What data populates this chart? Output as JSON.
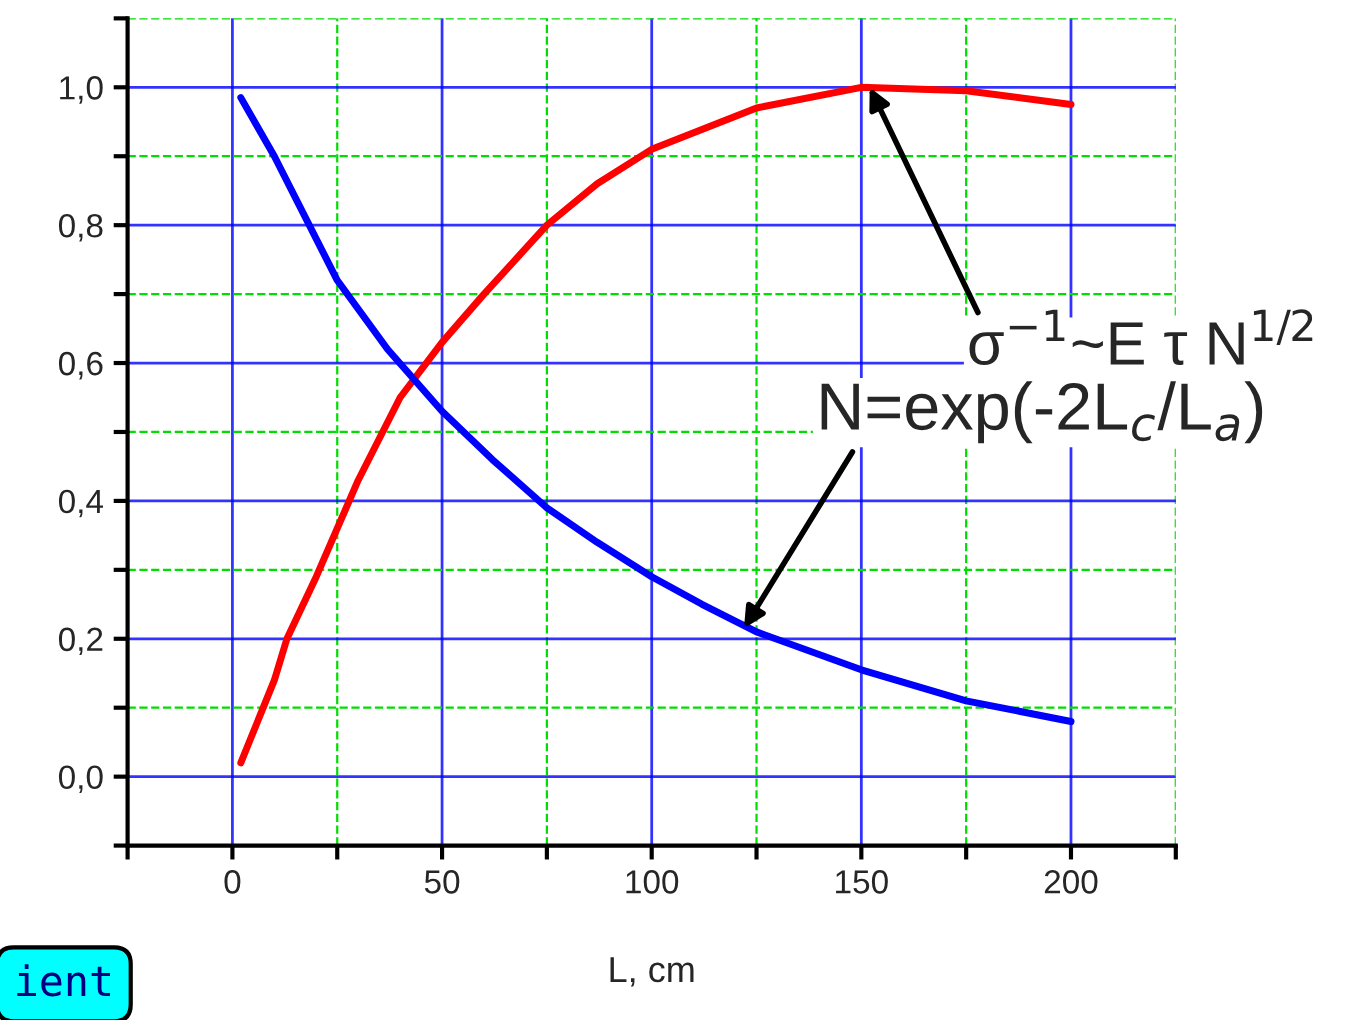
{
  "chart_data": {
    "type": "line",
    "xlabel": "L, cm",
    "series": [
      {
        "color": "#ff0000",
        "x": [
          2,
          10,
          13,
          20,
          25,
          30,
          40,
          50,
          60,
          75,
          87,
          100,
          125,
          150,
          175,
          200
        ],
        "values": [
          0.02,
          0.14,
          0.2,
          0.29,
          0.36,
          0.43,
          0.55,
          0.63,
          0.7,
          0.8,
          0.86,
          0.91,
          0.97,
          1.0,
          0.995,
          0.975
        ]
      },
      {
        "color": "#0000ff",
        "x": [
          2,
          10,
          25,
          37,
          50,
          62,
          75,
          87,
          100,
          112,
          125,
          150,
          175,
          200
        ],
        "values": [
          0.985,
          0.9,
          0.72,
          0.62,
          0.53,
          0.46,
          0.39,
          0.34,
          0.29,
          0.25,
          0.21,
          0.155,
          0.11,
          0.08
        ]
      }
    ],
    "xlim": [
      -25,
      225
    ],
    "xticks": [
      {
        "value": -25,
        "label": null
      },
      0,
      {
        "value": 25,
        "label": null
      },
      50,
      {
        "value": 75,
        "label": null
      },
      100,
      {
        "value": 125,
        "label": null
      },
      150,
      {
        "value": 175,
        "label": null
      },
      200,
      {
        "value": 225,
        "label": null
      }
    ],
    "ylim": [
      -0.1,
      1.1
    ],
    "yticks": [
      {
        "value": -0.1,
        "label": null
      },
      {
        "value": 0.0,
        "label": "0,0"
      },
      {
        "value": 0.1,
        "label": null
      },
      {
        "value": 0.3,
        "label": null
      },
      {
        "value": 0.5,
        "label": null
      },
      {
        "value": 0.7,
        "label": null
      },
      {
        "value": 0.9,
        "label": null
      },
      {
        "value": 1.1,
        "label": null
      },
      {
        "value": 0.2,
        "label": "0,2"
      },
      {
        "value": 0.4,
        "label": "0,4"
      },
      {
        "value": 0.6,
        "label": "0,6"
      },
      {
        "value": 0.8,
        "label": "0,8"
      },
      {
        "value": 1.0,
        "label": "1,0"
      }
    ],
    "grid": true,
    "marker": "none",
    "line_style": "solid",
    "annotations": [
      {
        "text": "σ$^{−1}$~E τ N$^{1/2}$",
        "x": 152,
        "y": 1.0
      },
      {
        "text": "N=exp(-2L$_{c}$/L$_{a}$)",
        "x": 122,
        "y": 0.215
      },
      "ient"
    ]
  }
}
